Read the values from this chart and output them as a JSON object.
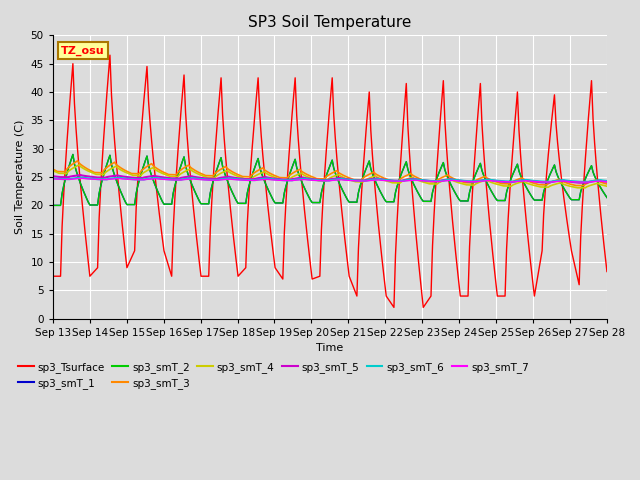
{
  "title": "SP3 Soil Temperature",
  "ylabel": "Soil Temperature (C)",
  "xlabel": "Time",
  "annotation": "TZ_osu",
  "ylim": [
    0,
    50
  ],
  "x_tick_labels": [
    "Sep 13",
    "Sep 14",
    "Sep 15",
    "Sep 16",
    "Sep 17",
    "Sep 18",
    "Sep 19",
    "Sep 20",
    "Sep 21",
    "Sep 22",
    "Sep 23",
    "Sep 24",
    "Sep 25",
    "Sep 26",
    "Sep 27",
    "Sep 28"
  ],
  "series_colors": {
    "sp3_Tsurface": "#ff0000",
    "sp3_smT_1": "#0000cc",
    "sp3_smT_2": "#00cc00",
    "sp3_smT_3": "#ff8800",
    "sp3_smT_4": "#cccc00",
    "sp3_smT_5": "#cc00cc",
    "sp3_smT_6": "#00cccc",
    "sp3_smT_7": "#ff00ff"
  },
  "day_peaks": [
    45.0,
    46.5,
    44.5,
    43.0,
    42.5,
    42.5,
    42.5,
    42.5,
    40.0,
    41.5,
    42.0,
    41.5,
    40.0,
    39.5,
    42.0
  ],
  "night_troughs": [
    7.5,
    9.0,
    12.0,
    7.5,
    7.5,
    9.0,
    7.0,
    7.5,
    4.0,
    2.0,
    4.0,
    4.0,
    4.0,
    12.0,
    6.0
  ],
  "peak_hour": 13,
  "trough_hour": 5,
  "n_per_day": 24,
  "n_days": 15
}
